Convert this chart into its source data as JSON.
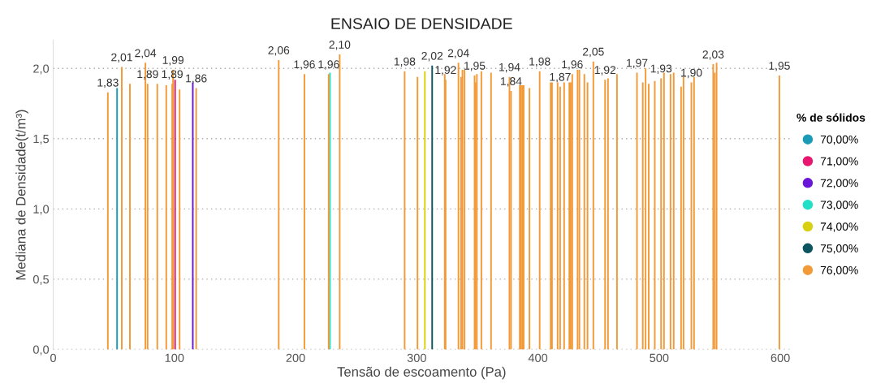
{
  "chart_data": {
    "type": "bar",
    "title": "ENSAIO DE DENSIDADE",
    "xlabel": "Tensão de escoamento (Pa)",
    "ylabel": "Mediana de Densidade(t/m³)",
    "legend_title": "% de sólidos",
    "legend": "right",
    "grid": "y",
    "xlim": [
      0,
      608
    ],
    "xticks": [
      0,
      100,
      200,
      300,
      400,
      500,
      600
    ],
    "ylim": [
      0,
      2.2
    ],
    "yticks": [
      {
        "value": 0,
        "label": "0,0"
      },
      {
        "value": 0.5,
        "label": "0,5"
      },
      {
        "value": 1.0,
        "label": "1,0"
      },
      {
        "value": 1.5,
        "label": "1,5"
      },
      {
        "value": 2.0,
        "label": "2,0"
      }
    ],
    "series": [
      {
        "name": "70,00%",
        "color": "#1a9bb5",
        "x": [
          52.7
        ],
        "values": [
          1.86
        ]
      },
      {
        "name": "71,00%",
        "color": "#e8166e",
        "x": [
          100.6
        ],
        "values": [
          1.92
        ]
      },
      {
        "name": "72,00%",
        "color": "#6a16d8",
        "x": [
          115.2
        ],
        "values": [
          1.9
        ]
      },
      {
        "name": "73,00%",
        "color": "#22e0c8",
        "x": [
          228.4
        ],
        "values": [
          1.97
        ]
      },
      {
        "name": "74,00%",
        "color": "#d8d010",
        "x": [
          306.7
        ],
        "values": [
          1.98
        ]
      },
      {
        "name": "75,00%",
        "color": "#0c5560",
        "x": [
          312.7
        ],
        "values": [
          2.02
        ],
        "value_labels": [
          "2,02"
        ]
      },
      {
        "name": "76,00%",
        "color": "#f29a38",
        "x": [
          45.1,
          56.6,
          63.3,
          76.1,
          77.9,
          85.9,
          93.3,
          98.2,
          98.9,
          104.3,
          118.0,
          186.1,
          207.3,
          227.3,
          236.4,
          290.0,
          300.6,
          323.1,
          323.8,
          334.4,
          336.6,
          337.7,
          339.4,
          347.7,
          348.5,
          349.6,
          353.3,
          361.3,
          376.5,
          377.8,
          385.0,
          386.0,
          387.1,
          388.2,
          393.0,
          401.4,
          410.5,
          411.6,
          416.2,
          418.3,
          421.6,
          425.9,
          427.0,
          428.3,
          432.7,
          434.2,
          438.3,
          440.9,
          445.7,
          455.4,
          457.8,
          465.2,
          481.7,
          486.5,
          488.8,
          491.4,
          496.4,
          501.6,
          504.0,
          509.4,
          512.0,
          518.1,
          520.1,
          526.6,
          528.8,
          544.6,
          545.9,
          547.4,
          599.2
        ],
        "values": [
          1.83,
          2.01,
          1.89,
          2.04,
          1.89,
          1.89,
          1.88,
          1.89,
          1.99,
          1.85,
          1.86,
          2.06,
          1.96,
          1.96,
          2.1,
          1.98,
          1.94,
          1.96,
          1.92,
          2.04,
          1.94,
          1.99,
          1.99,
          1.95,
          1.9,
          1.96,
          1.98,
          1.97,
          1.94,
          1.84,
          1.88,
          1.88,
          1.88,
          1.88,
          1.86,
          1.98,
          1.9,
          1.9,
          1.9,
          1.87,
          1.9,
          1.9,
          1.9,
          1.96,
          1.99,
          1.99,
          1.96,
          1.9,
          2.05,
          1.92,
          1.93,
          1.96,
          1.97,
          1.9,
          2.0,
          1.89,
          1.91,
          1.93,
          1.97,
          1.96,
          1.97,
          1.87,
          1.94,
          1.9,
          1.94,
          2.03,
          1.97,
          2.04,
          1.95
        ],
        "value_labels": [
          "1,83",
          "2,01",
          null,
          "2,04",
          "1,89",
          null,
          null,
          "1,89",
          "1,99",
          null,
          "1,86",
          "2,06",
          "1,96",
          "1,96",
          "2,10",
          "1,98",
          null,
          null,
          "1,92",
          "2,04",
          null,
          null,
          null,
          "1,95",
          null,
          null,
          null,
          null,
          "1,94",
          "1,84",
          null,
          null,
          null,
          null,
          null,
          "1,98",
          null,
          null,
          null,
          "1,87",
          null,
          null,
          null,
          "1,96",
          null,
          null,
          null,
          null,
          "2,05",
          "1,92",
          null,
          null,
          "1,97",
          null,
          null,
          null,
          null,
          "1,93",
          null,
          null,
          null,
          null,
          null,
          "1,90",
          null,
          "2,03",
          null,
          null,
          "1,95"
        ]
      }
    ]
  }
}
